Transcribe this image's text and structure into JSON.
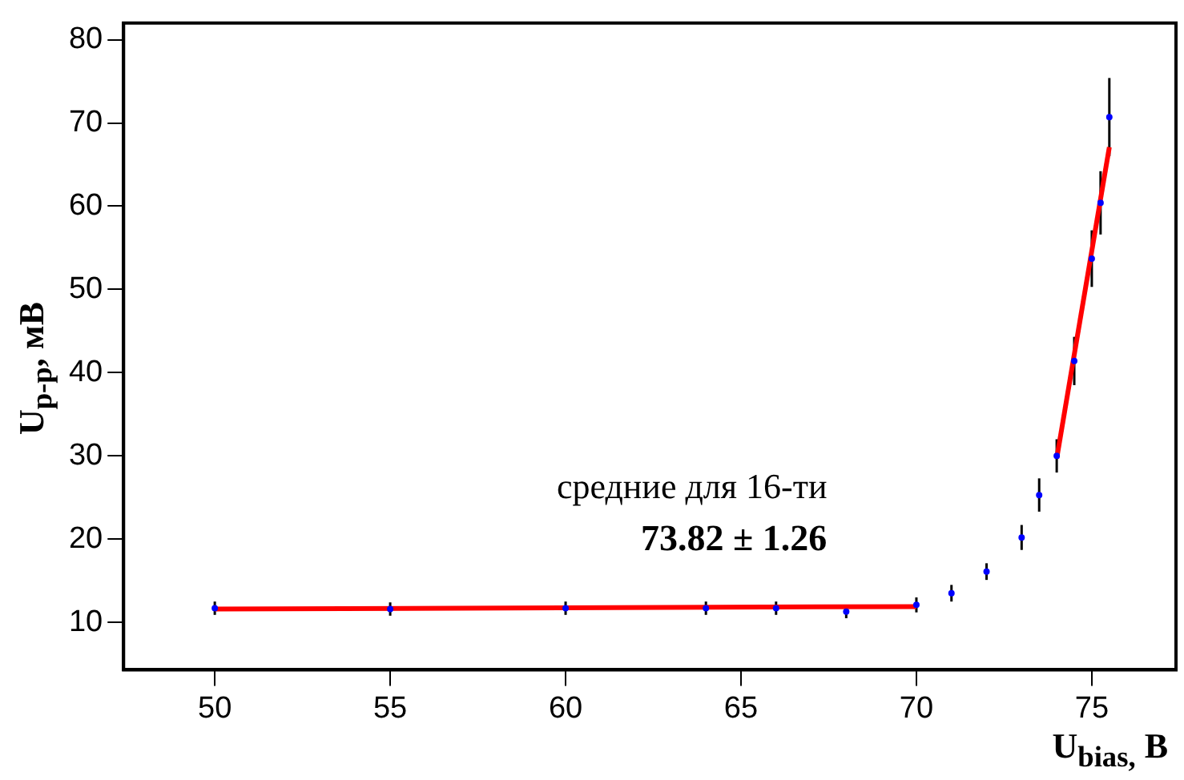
{
  "chart_data": {
    "type": "scatter",
    "xlabel": "U$_{bias,}$ B",
    "ylabel": "U$_{p-p}$, мВ",
    "xlim": [
      47.4,
      77.4
    ],
    "xticks": [
      50,
      55,
      60,
      65,
      70,
      75
    ],
    "ylim": [
      4.3,
      82
    ],
    "yticks": [
      10,
      20,
      30,
      40,
      50,
      60,
      70,
      80
    ],
    "grid": false,
    "legend": false,
    "marker": "circle",
    "series": [
      {
        "color": "#0000ff",
        "x": [
          50,
          55,
          60,
          64,
          66,
          68,
          70,
          71,
          72,
          73,
          73.5,
          74,
          74.5,
          75,
          75.25,
          75.5
        ],
        "values": [
          11.7,
          11.6,
          11.7,
          11.7,
          11.7,
          11.3,
          12.1,
          13.5,
          16.1,
          20.2,
          25.3,
          30.0,
          41.4,
          53.7,
          60.4,
          70.7
        ],
        "errors": [
          0.8,
          0.8,
          0.8,
          0.8,
          0.8,
          0.8,
          0.9,
          1,
          1,
          1.5,
          2,
          2,
          2.9,
          3.4,
          3.8,
          4.7
        ]
      },
      {
        "type": "line",
        "color": "#ff0000",
        "marker": "none",
        "x": [
          50,
          70
        ],
        "values": [
          11.6,
          11.9
        ]
      },
      {
        "type": "line",
        "color": "#ff0000",
        "marker": "none",
        "x": [
          74,
          75.5
        ],
        "values": [
          29.7,
          67.1
        ]
      }
    ],
    "annotations": [
      "средние для 16-ти",
      "73.82 ± 1.26"
    ]
  }
}
